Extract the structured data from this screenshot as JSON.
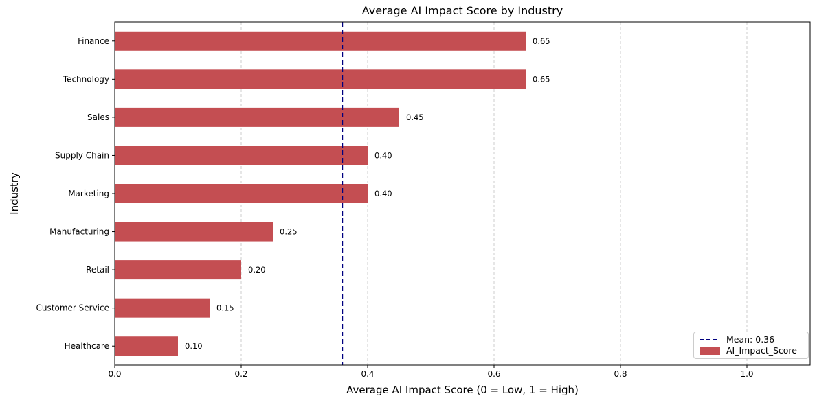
{
  "chart_data": {
    "type": "bar",
    "orientation": "horizontal",
    "title": "Average AI Impact Score by Industry",
    "xlabel": "Average AI Impact Score (0 = Low, 1 = High)",
    "ylabel": "Industry",
    "categories": [
      "Finance",
      "Technology",
      "Sales",
      "Supply Chain",
      "Marketing",
      "Manufacturing",
      "Retail",
      "Customer Service",
      "Healthcare"
    ],
    "values": [
      0.65,
      0.65,
      0.45,
      0.4,
      0.4,
      0.25,
      0.2,
      0.15,
      0.1
    ],
    "bar_labels": [
      "0.65",
      "0.65",
      "0.45",
      "0.40",
      "0.40",
      "0.25",
      "0.20",
      "0.15",
      "0.10"
    ],
    "xlim": [
      0,
      1.1
    ],
    "xticks": [
      0.0,
      0.2,
      0.4,
      0.6,
      0.8,
      1.0
    ],
    "xtick_labels": [
      "0.0",
      "0.2",
      "0.4",
      "0.6",
      "0.8",
      "1.0"
    ],
    "grid": true,
    "mean_line": {
      "value": 0.36,
      "label": "Mean: 0.36"
    },
    "legend": {
      "position": "lower right",
      "entries": [
        {
          "label": "Mean: 0.36",
          "type": "dashed-line"
        },
        {
          "label": "AI_Impact_Score",
          "type": "bar-swatch"
        }
      ]
    },
    "colors": {
      "bar": "#C44E52",
      "mean_line": "#000080",
      "grid": "#cccccc",
      "spine": "#000000",
      "text": "#000000",
      "background": "#ffffff"
    }
  }
}
